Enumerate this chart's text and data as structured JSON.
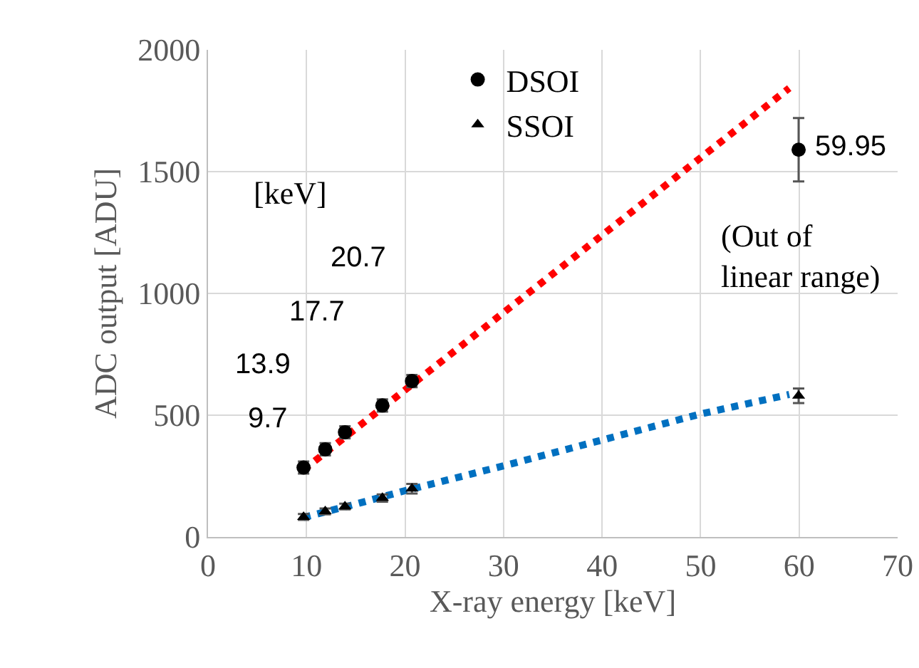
{
  "chart_data": {
    "type": "scatter",
    "xlabel": "X-ray energy [keV]",
    "ylabel": "ADC output [ADU]",
    "xlim": [
      0,
      70
    ],
    "xticks": [
      0,
      10,
      20,
      30,
      40,
      50,
      60,
      70
    ],
    "ylim": [
      0,
      2000
    ],
    "yticks": [
      0,
      500,
      1000,
      1500,
      2000
    ],
    "grid": true,
    "legend": "top",
    "series": [
      {
        "type": "line",
        "color": "#ff0000",
        "line_style": "dotted",
        "x": [
          9.7,
          59
        ],
        "values": [
          276,
          1843
        ]
      },
      {
        "type": "line",
        "color": "#0070c0",
        "line_style": "dotted",
        "x": [
          9.7,
          15,
          20,
          30,
          40,
          50,
          59
        ],
        "values": [
          80,
          135,
          190,
          292,
          398,
          505,
          585
        ]
      },
      {
        "name": "DSOI",
        "color": "#000000",
        "marker": "circle",
        "x": [
          9.7,
          11.9,
          13.9,
          17.7,
          20.7,
          59.95
        ],
        "values": [
          285,
          360,
          430,
          540,
          640,
          1590
        ],
        "errors": [
          25,
          25,
          25,
          25,
          25,
          130
        ]
      },
      {
        "name": "SSOI",
        "color": "#000000",
        "marker": "triangle",
        "x": [
          9.7,
          11.9,
          13.9,
          17.7,
          20.7,
          59.95
        ],
        "values": [
          82,
          105,
          125,
          160,
          198,
          580
        ],
        "errors": [
          12,
          12,
          12,
          15,
          20,
          30
        ]
      }
    ],
    "annotations": [
      "[keV]",
      "20.7",
      "17.7",
      "13.9",
      "9.7",
      "59.95",
      "(Out of\nlinear range)"
    ]
  }
}
